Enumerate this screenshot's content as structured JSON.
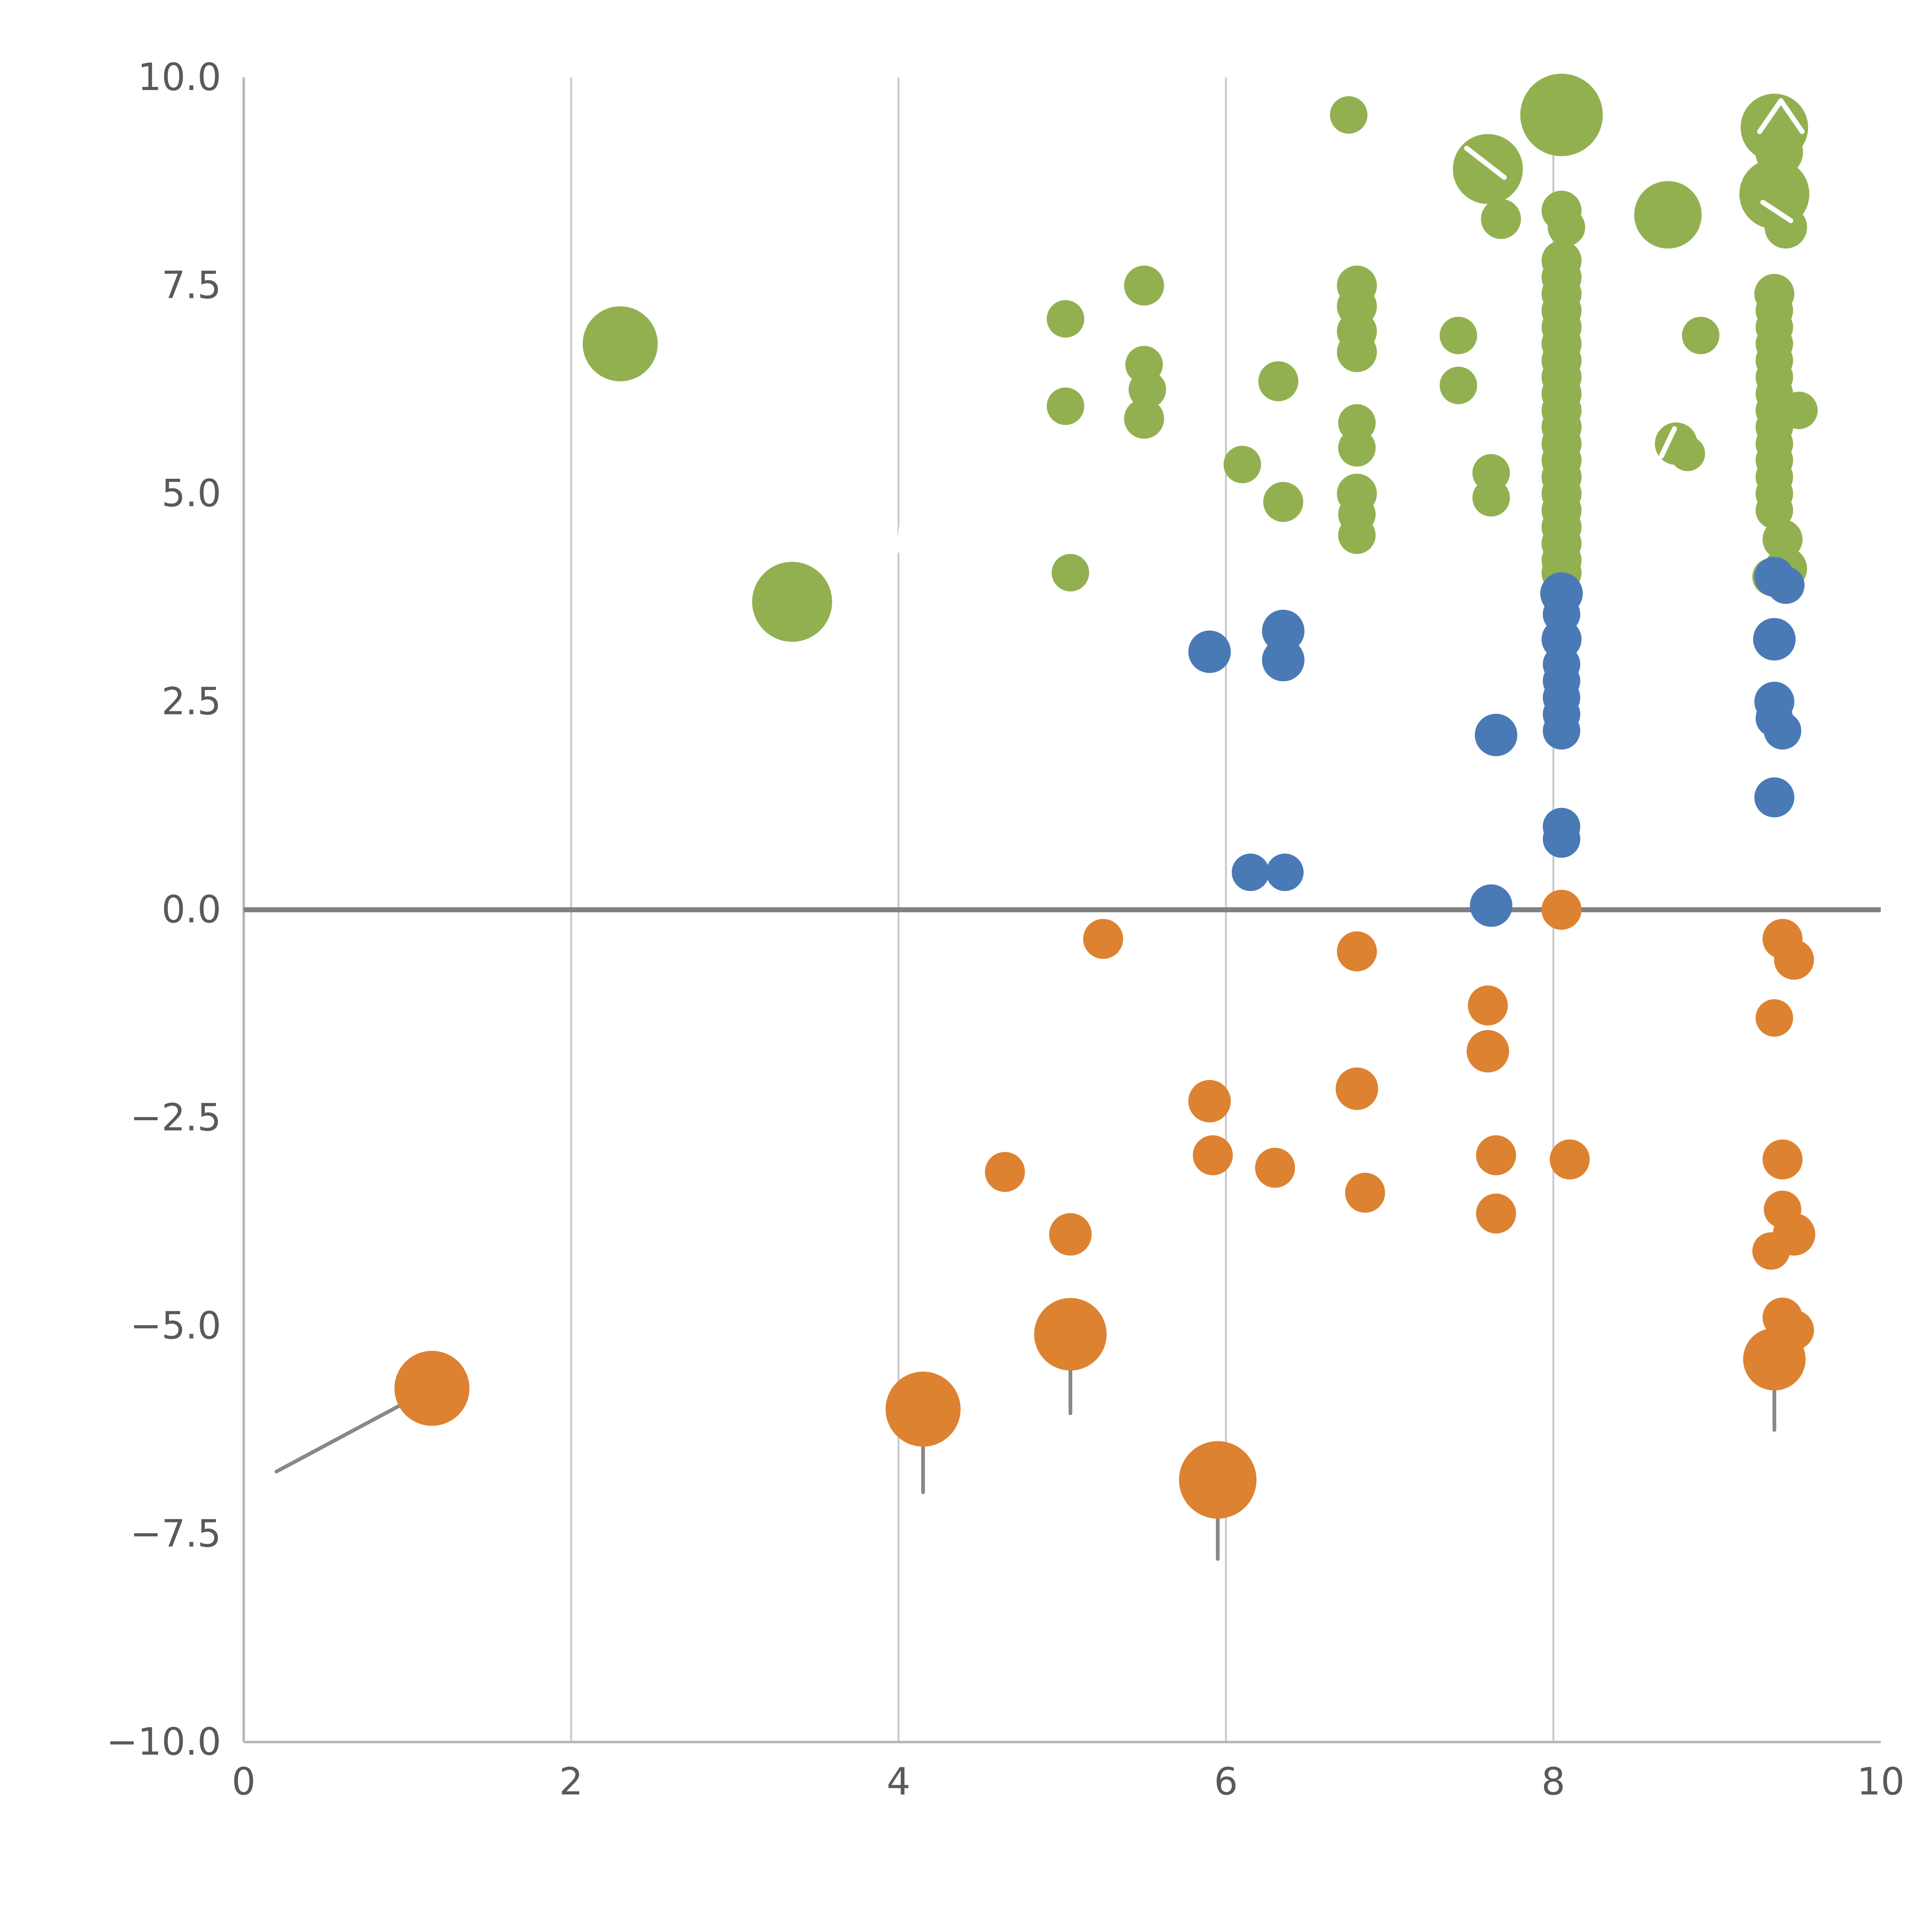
{
  "chart_data": {
    "type": "scatter",
    "title": "",
    "subtitle": "",
    "xlabel": "",
    "ylabel": "",
    "legend": "none",
    "grid": "vertical-gridlines-on",
    "xlim": [
      0,
      10
    ],
    "ylim": [
      -10,
      10
    ],
    "x_ticks": [
      {
        "v": 0,
        "label": "0"
      },
      {
        "v": 2,
        "label": "2"
      },
      {
        "v": 4,
        "label": "4"
      },
      {
        "v": 6,
        "label": "6"
      },
      {
        "v": 8,
        "label": "8"
      },
      {
        "v": 10,
        "label": "10"
      }
    ],
    "y_ticks": [
      {
        "v": 10.0,
        "label": "10.0"
      },
      {
        "v": 7.5,
        "label": "7.5"
      },
      {
        "v": 5.0,
        "label": "5.0"
      },
      {
        "v": 2.5,
        "label": "2.5"
      },
      {
        "v": 0.0,
        "label": "0.0"
      },
      {
        "v": -2.5,
        "label": "−2.5"
      },
      {
        "v": -5.0,
        "label": "−5.0"
      },
      {
        "v": -7.5,
        "label": "−7.5"
      },
      {
        "v": -10.0,
        "label": "−10.0"
      }
    ],
    "x_gridlines": [
      2,
      4,
      6,
      8
    ],
    "reference_line_y": 0,
    "series": [
      {
        "name": "green-group",
        "color": "#93b051",
        "points": [
          [
            2.3,
            6.8,
            30
          ],
          [
            3.35,
            3.7,
            32
          ],
          [
            5.02,
            7.1,
            15
          ],
          [
            5.02,
            6.05,
            15
          ],
          [
            5.05,
            4.05,
            15
          ],
          [
            5.5,
            7.5,
            16
          ],
          [
            5.5,
            6.55,
            15
          ],
          [
            5.52,
            6.25,
            15
          ],
          [
            5.5,
            5.9,
            16
          ],
          [
            6.1,
            5.35,
            15
          ],
          [
            6.32,
            6.35,
            16
          ],
          [
            6.35,
            4.9,
            16
          ],
          [
            6.75,
            9.55,
            15
          ],
          [
            6.8,
            7.5,
            16
          ],
          [
            6.8,
            7.25,
            16
          ],
          [
            6.8,
            6.95,
            16
          ],
          [
            6.8,
            6.7,
            16
          ],
          [
            6.8,
            5.85,
            15
          ],
          [
            6.8,
            5.55,
            15
          ],
          [
            6.8,
            5.0,
            16
          ],
          [
            6.8,
            4.75,
            15
          ],
          [
            6.8,
            4.5,
            15
          ],
          [
            7.42,
            6.9,
            15
          ],
          [
            7.42,
            6.3,
            15
          ],
          [
            7.6,
            8.9,
            28
          ],
          [
            7.68,
            8.3,
            16
          ],
          [
            7.62,
            5.25,
            15
          ],
          [
            7.62,
            4.95,
            15
          ],
          [
            8.05,
            9.55,
            33
          ],
          [
            8.05,
            8.4,
            16
          ],
          [
            8.08,
            8.2,
            15
          ],
          [
            8.05,
            7.8,
            16
          ],
          [
            8.05,
            7.6,
            16
          ],
          [
            8.05,
            7.4,
            16
          ],
          [
            8.05,
            7.2,
            16
          ],
          [
            8.05,
            7.0,
            16
          ],
          [
            8.05,
            6.8,
            16
          ],
          [
            8.05,
            6.6,
            16
          ],
          [
            8.05,
            6.4,
            16
          ],
          [
            8.05,
            6.2,
            16
          ],
          [
            8.05,
            6.0,
            16
          ],
          [
            8.05,
            5.8,
            16
          ],
          [
            8.05,
            5.6,
            16
          ],
          [
            8.05,
            5.4,
            16
          ],
          [
            8.05,
            5.2,
            16
          ],
          [
            8.05,
            5.0,
            16
          ],
          [
            8.05,
            4.8,
            16
          ],
          [
            8.05,
            4.6,
            16
          ],
          [
            8.05,
            4.4,
            16
          ],
          [
            8.05,
            4.2,
            16
          ],
          [
            8.05,
            4.05,
            16
          ],
          [
            8.7,
            8.35,
            27
          ],
          [
            8.9,
            6.9,
            15
          ],
          [
            8.75,
            5.6,
            17
          ],
          [
            8.82,
            5.48,
            14
          ],
          [
            9.35,
            9.4,
            27
          ],
          [
            9.38,
            9.1,
            19
          ],
          [
            9.35,
            8.6,
            28
          ],
          [
            9.42,
            8.2,
            17
          ],
          [
            9.35,
            7.4,
            16
          ],
          [
            9.35,
            7.2,
            15
          ],
          [
            9.35,
            7.0,
            15
          ],
          [
            9.35,
            6.8,
            15
          ],
          [
            9.35,
            6.6,
            15
          ],
          [
            9.35,
            6.4,
            15
          ],
          [
            9.35,
            6.2,
            15
          ],
          [
            9.5,
            6.0,
            15
          ],
          [
            9.35,
            6.0,
            15
          ],
          [
            9.35,
            5.8,
            15
          ],
          [
            9.35,
            5.6,
            15
          ],
          [
            9.35,
            5.4,
            15
          ],
          [
            9.35,
            5.2,
            15
          ],
          [
            9.35,
            5.0,
            15
          ],
          [
            9.35,
            4.8,
            15
          ],
          [
            9.4,
            4.45,
            16
          ],
          [
            9.42,
            4.1,
            17
          ],
          [
            9.33,
            4.0,
            15
          ]
        ]
      },
      {
        "name": "blue-group",
        "color": "#4a7ab5",
        "points": [
          [
            5.9,
            3.1,
            17
          ],
          [
            6.35,
            3.35,
            17
          ],
          [
            6.35,
            3.0,
            17
          ],
          [
            6.15,
            0.45,
            15
          ],
          [
            6.36,
            0.45,
            15
          ],
          [
            7.65,
            2.1,
            17
          ],
          [
            7.62,
            0.05,
            17
          ],
          [
            8.05,
            3.8,
            17
          ],
          [
            8.05,
            3.55,
            15
          ],
          [
            8.05,
            3.25,
            16
          ],
          [
            8.05,
            2.95,
            15
          ],
          [
            8.05,
            2.75,
            15
          ],
          [
            8.05,
            2.55,
            15
          ],
          [
            8.05,
            2.35,
            15
          ],
          [
            8.05,
            2.15,
            15
          ],
          [
            8.05,
            1.0,
            15
          ],
          [
            8.05,
            0.85,
            15
          ],
          [
            9.35,
            4.0,
            16
          ],
          [
            9.42,
            3.9,
            15
          ],
          [
            9.35,
            3.25,
            17
          ],
          [
            9.35,
            2.5,
            16
          ],
          [
            9.35,
            2.3,
            15
          ],
          [
            9.4,
            2.15,
            15
          ],
          [
            9.35,
            1.35,
            16
          ]
        ]
      },
      {
        "name": "orange-group",
        "color": "#dd8231",
        "points": [
          [
            1.15,
            -5.75,
            30
          ],
          [
            4.15,
            -6.0,
            30
          ],
          [
            4.65,
            -3.15,
            16
          ],
          [
            5.05,
            -3.9,
            17
          ],
          [
            5.05,
            -5.1,
            29
          ],
          [
            5.25,
            -0.35,
            16
          ],
          [
            5.9,
            -2.3,
            17
          ],
          [
            5.92,
            -2.95,
            16
          ],
          [
            5.95,
            -6.85,
            31
          ],
          [
            6.3,
            -3.1,
            16
          ],
          [
            6.8,
            -0.5,
            16
          ],
          [
            6.8,
            -2.15,
            17
          ],
          [
            6.85,
            -3.4,
            16
          ],
          [
            7.6,
            -1.15,
            16
          ],
          [
            7.6,
            -1.7,
            17
          ],
          [
            7.65,
            -2.95,
            16
          ],
          [
            7.65,
            -3.65,
            16
          ],
          [
            8.05,
            0.0,
            16
          ],
          [
            8.1,
            -3.0,
            16
          ],
          [
            9.4,
            -0.35,
            16
          ],
          [
            9.47,
            -0.6,
            16
          ],
          [
            9.35,
            -1.3,
            15
          ],
          [
            9.4,
            -3.0,
            16
          ],
          [
            9.4,
            -3.6,
            15
          ],
          [
            9.47,
            -3.9,
            17
          ],
          [
            9.33,
            -4.1,
            15
          ],
          [
            9.4,
            -4.9,
            16
          ],
          [
            9.47,
            -5.05,
            16
          ],
          [
            9.35,
            -5.4,
            25
          ]
        ]
      }
    ],
    "stems": [
      {
        "x1": 0.2,
        "y1": -6.75,
        "x2": 1.15,
        "y2": -5.75
      },
      {
        "x1": 4.15,
        "y1": -6.05,
        "x2": 4.15,
        "y2": -7.0
      },
      {
        "x1": 5.05,
        "y1": -5.15,
        "x2": 5.05,
        "y2": -6.05
      },
      {
        "x1": 5.95,
        "y1": -6.9,
        "x2": 5.95,
        "y2": -7.8
      },
      {
        "x1": 9.35,
        "y1": -5.45,
        "x2": 9.35,
        "y2": -6.25
      }
    ],
    "annotations": [
      {
        "name": "white-caret-left",
        "x1": 9.26,
        "y1": 9.35,
        "x2": 9.39,
        "y2": 9.72,
        "color": "#ffffff"
      },
      {
        "name": "white-caret-right",
        "x1": 9.39,
        "y1": 9.72,
        "x2": 9.52,
        "y2": 9.35,
        "color": "#ffffff"
      },
      {
        "name": "white-slash-1",
        "x1": 7.47,
        "y1": 9.15,
        "x2": 7.7,
        "y2": 8.8,
        "color": "#ffffff"
      },
      {
        "name": "white-slash-2",
        "x1": 8.66,
        "y1": 5.45,
        "x2": 8.74,
        "y2": 5.78,
        "color": "#ffffff"
      },
      {
        "name": "white-slash-3",
        "x1": 9.28,
        "y1": 8.5,
        "x2": 9.45,
        "y2": 8.28,
        "color": "#ffffff"
      },
      {
        "name": "white-tick-4",
        "x1": 4.02,
        "y1": 4.62,
        "x2": 4.0,
        "y2": 4.32,
        "color": "#ffffff"
      }
    ],
    "colors": {
      "background": "#ffffff",
      "spine": "#b7b7b7",
      "gridline": "#c8c8c8",
      "zero_line": "#808080",
      "stem": "#888888",
      "tick_text": "#595959"
    }
  }
}
